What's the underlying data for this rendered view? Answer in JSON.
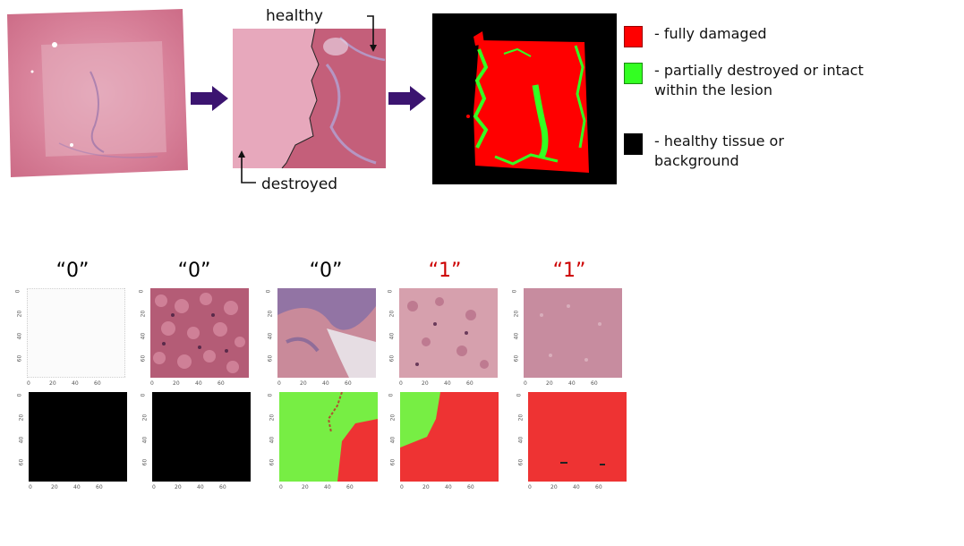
{
  "top": {
    "annotations": {
      "healthy": "healthy",
      "destroyed": "destroyed"
    },
    "legend": [
      {
        "color": "#ff0000",
        "text": "- fully damaged",
        "icon": "red-swatch"
      },
      {
        "color": "#33ff22",
        "text": "- partially destroyed or intact within the lesion",
        "icon": "green-swatch"
      },
      {
        "color": "#000000",
        "text": "- healthy tissue or background",
        "icon": "black-swatch"
      }
    ],
    "colors": {
      "arrow": "#3b1470",
      "tissue": "#d77a8f",
      "mask_red": "#ff0000",
      "mask_green": "#33ff22",
      "mask_bg": "#000000"
    }
  },
  "bottom": {
    "columns": [
      {
        "label": "“0”",
        "label_color": "#000000",
        "patch": "blank",
        "mask": "all-black"
      },
      {
        "label": "“0”",
        "label_color": "#000000",
        "patch": "healthy",
        "mask": "all-black"
      },
      {
        "label": "“0”",
        "label_color": "#000000",
        "patch": "fibrous",
        "mask": "green-red-split"
      },
      {
        "label": "“1”",
        "label_color": "#cc0000",
        "patch": "partial",
        "mask": "green-corner-red"
      },
      {
        "label": "“1”",
        "label_color": "#cc0000",
        "patch": "destroyed",
        "mask": "all-red"
      }
    ],
    "axis_ticks_x": [
      "0",
      "20",
      "40",
      "60"
    ],
    "axis_ticks_y": [
      "0",
      "20",
      "40",
      "60"
    ],
    "colors": {
      "mask_red": "#ee3333",
      "mask_green": "#77ee44",
      "mask_black": "#000000"
    }
  }
}
